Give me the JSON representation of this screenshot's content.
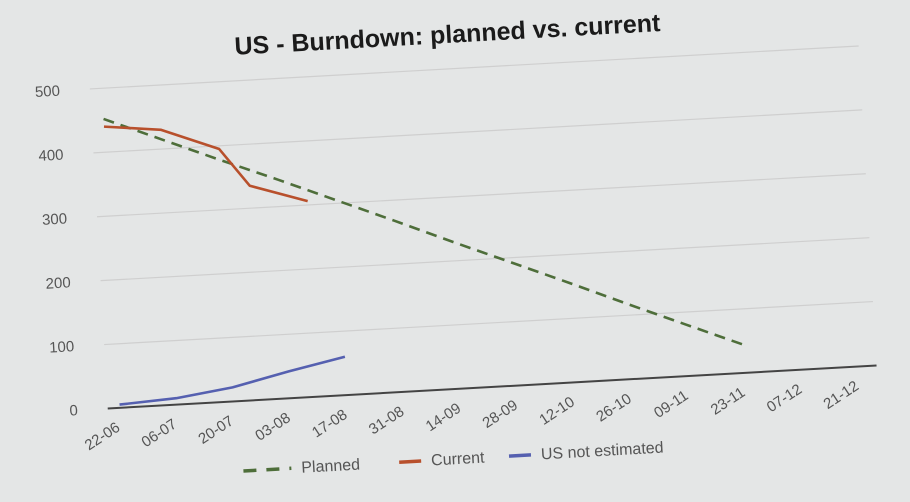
{
  "chart_data": {
    "type": "line",
    "title": "US - Burndown: planned vs. current",
    "xlabel": "",
    "ylabel": "",
    "categories": [
      "22-06",
      "06-07",
      "20-07",
      "03-08",
      "17-08",
      "31-08",
      "14-09",
      "28-09",
      "12-10",
      "26-10",
      "09-11",
      "23-11",
      "07-12",
      "21-12"
    ],
    "ylim": [
      0,
      500
    ],
    "yticks": [
      0,
      100,
      200,
      300,
      400,
      500
    ],
    "grid": true,
    "legend_position": "bottom",
    "series": [
      {
        "name": "Planned",
        "style": "dashed",
        "color": "#4e6e3a",
        "values": [
          452,
          415,
          378,
          342,
          305,
          268,
          230,
          193,
          156,
          118,
          81,
          44,
          null,
          null
        ]
      },
      {
        "name": "Current",
        "style": "solid",
        "color": "#b8502c",
        "points": [
          [
            0,
            440
          ],
          [
            0.5,
            435
          ],
          [
            1,
            430
          ],
          [
            2,
            395
          ],
          [
            2.5,
            335
          ],
          [
            3.5,
            306
          ]
        ]
      },
      {
        "name": "US not estimated",
        "style": "solid",
        "color": "#5560b0",
        "points": [
          [
            0,
            5
          ],
          [
            1,
            10
          ],
          [
            2,
            22
          ],
          [
            3,
            42
          ],
          [
            4,
            60
          ]
        ]
      }
    ]
  }
}
